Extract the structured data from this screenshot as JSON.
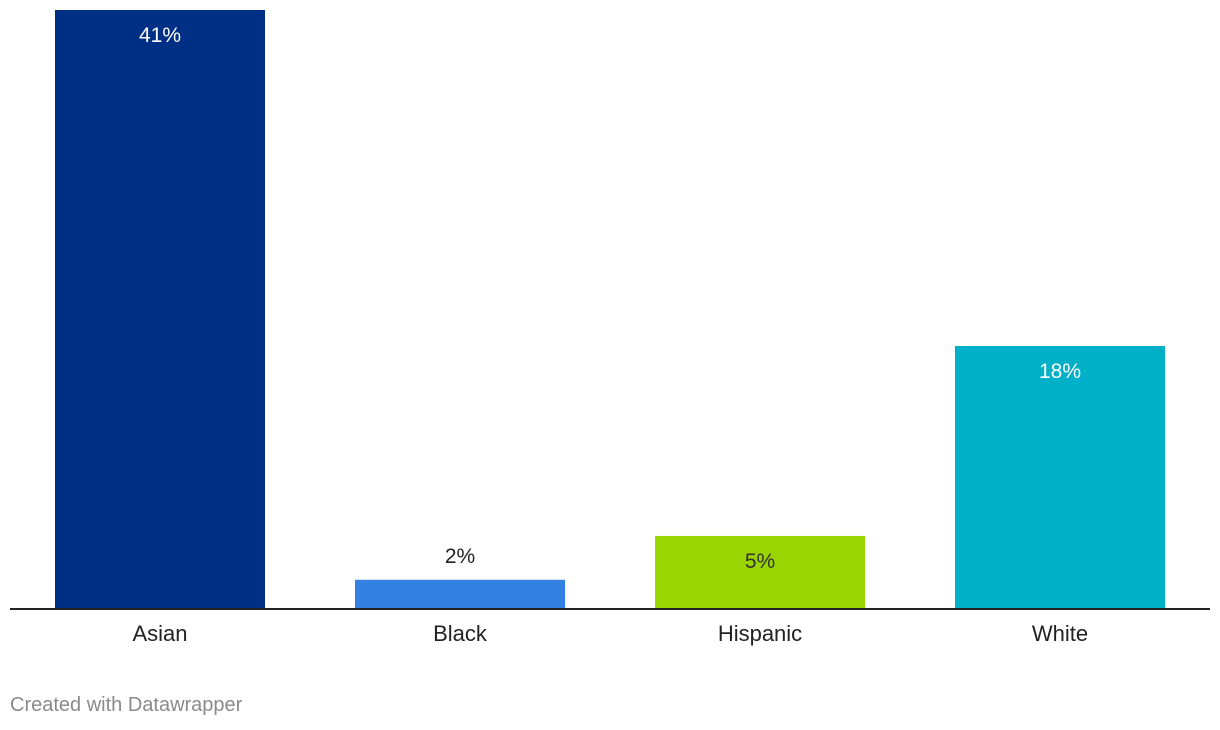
{
  "chart_data": {
    "type": "bar",
    "categories": [
      "Asian",
      "Black",
      "Hispanic",
      "White"
    ],
    "values": [
      41,
      2,
      5,
      18
    ],
    "value_labels": [
      "41%",
      "2%",
      "5%",
      "18%"
    ],
    "colors": [
      "#002f86",
      "#3380e3",
      "#99d501",
      "#00afc8"
    ],
    "label_colors": [
      "#ffffff",
      "#222222",
      "#333333",
      "#ffffff"
    ],
    "label_inside": [
      true,
      false,
      true,
      true
    ],
    "title": "",
    "xlabel": "",
    "ylabel": "",
    "ylim": [
      0,
      41
    ],
    "grid": false,
    "legend": "none"
  },
  "footer": {
    "credit": "Created with Datawrapper"
  }
}
